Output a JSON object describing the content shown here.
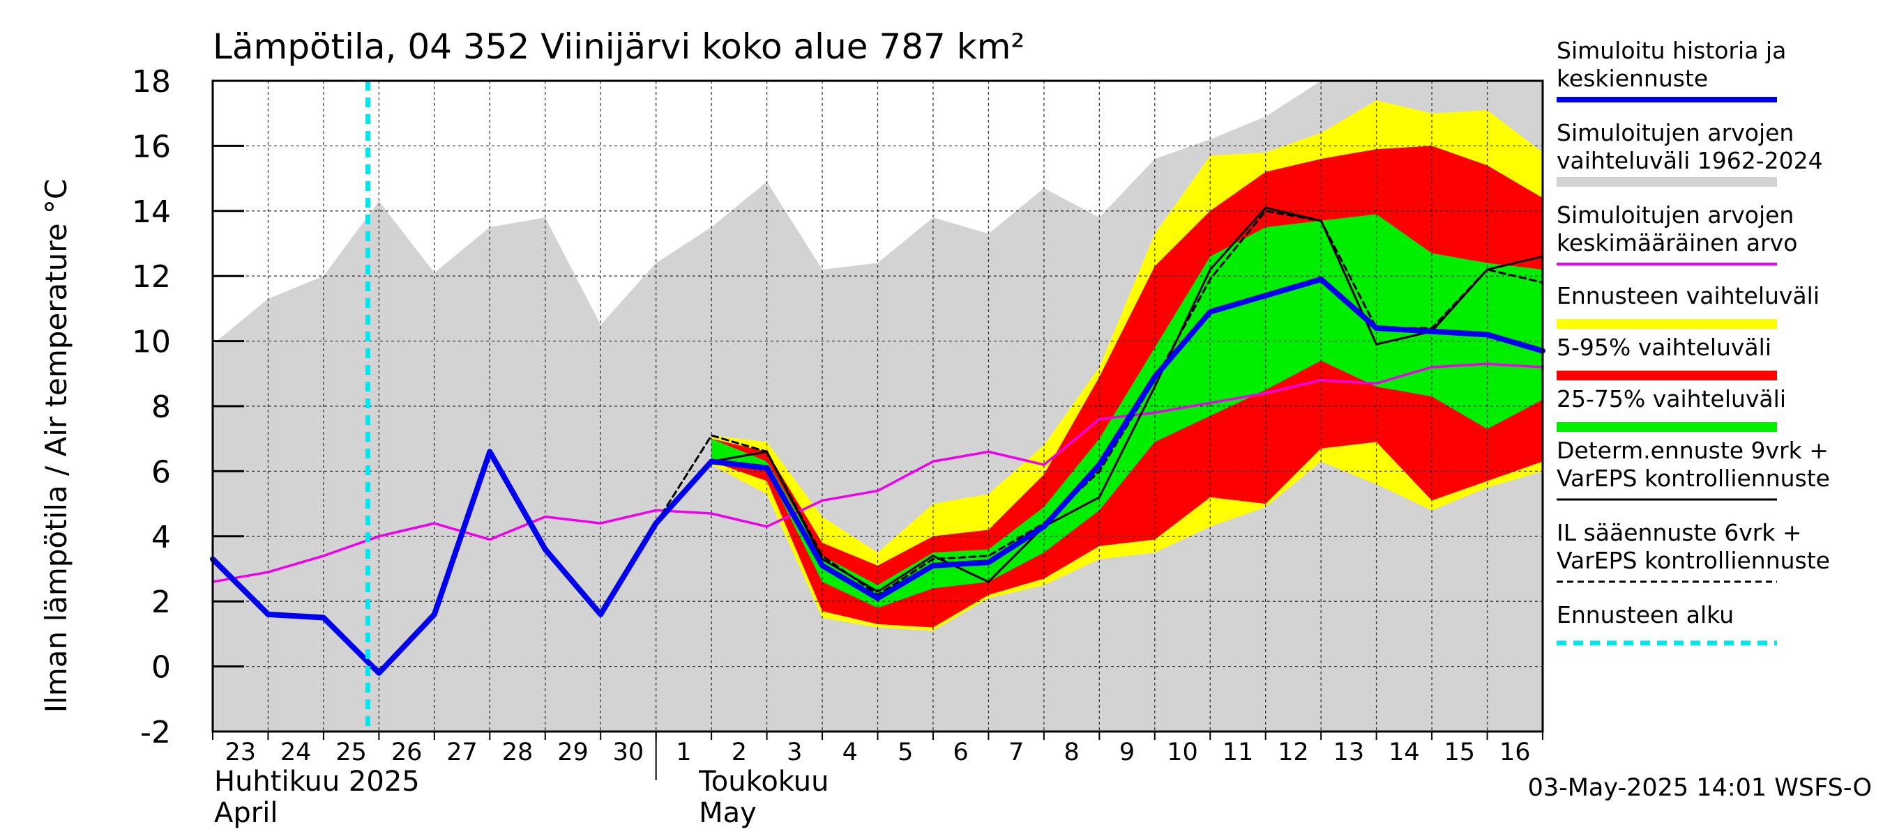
{
  "chart_data": {
    "type": "line",
    "title": "Lämpötila, 04 352 Viinijärvi koko alue 787 km²",
    "ylabel": "Ilman lämpötila / Air temperature   °C",
    "ylim": [
      -2,
      18
    ],
    "yticks": [
      -2,
      0,
      2,
      4,
      6,
      8,
      10,
      12,
      14,
      16,
      18
    ],
    "x_tick_labels": [
      "23",
      "24",
      "25",
      "26",
      "27",
      "28",
      "29",
      "30",
      "1",
      "2",
      "3",
      "4",
      "5",
      "6",
      "7",
      "8",
      "9",
      "10",
      "11",
      "12",
      "13",
      "14",
      "15",
      "16"
    ],
    "month_labels": [
      {
        "fi": "Huhtikuu  2025",
        "en": "April"
      },
      {
        "fi": "Toukokuu",
        "en": "May"
      }
    ],
    "forecast_start": 2.8,
    "timestamp": "03-May-2025 14:01 WSFS-O",
    "colors": {
      "history": "#0000ee",
      "range_hist": "#d3d3d3",
      "mean_hist": "#ee00ee",
      "forecast_range": "#ffff00",
      "range_5_95": "#ff0000",
      "range_25_75": "#00ee00",
      "determ": "#000000",
      "forecast_start": "#00e5ee"
    },
    "legend": [
      {
        "key": "history",
        "label": "Simuloitu historia ja keskiennuste",
        "line1": "Simuloitu historia ja",
        "line2": "keskiennuste"
      },
      {
        "key": "range_hist",
        "label": "Simuloitujen arvojen vaihteluväli 1962-2024",
        "line1": "Simuloitujen arvojen",
        "line2": "vaihteluväli 1962-2024"
      },
      {
        "key": "mean_hist",
        "label": "Simuloitujen arvojen keskimääräinen arvo",
        "line1": "Simuloitujen arvojen",
        "line2": "keskimääräinen arvo"
      },
      {
        "key": "forecast_range",
        "label": "Ennusteen vaihteluväli",
        "line1": "Ennusteen vaihteluväli",
        "line2": ""
      },
      {
        "key": "range_5_95",
        "label": "5-95% vaihteluväli",
        "line1": "5-95% vaihteluväli",
        "line2": ""
      },
      {
        "key": "range_25_75",
        "label": "25-75% vaihteluväli",
        "line1": "25-75% vaihteluväli",
        "line2": ""
      },
      {
        "key": "determ",
        "label": "Determ.ennuste 9vrk + VarEPS kontrolliennuste",
        "line1": "Determ.ennuste 9vrk +",
        "line2": "VarEPS kontrolliennuste"
      },
      {
        "key": "il",
        "label": "IL sääennuste 6vrk + VarEPS kontrolliennuste",
        "line1": "IL sääennuste 6vrk  +",
        "line2": "  VarEPS kontrolliennuste"
      },
      {
        "key": "forecast_start",
        "label": "Ennusteen alku",
        "line1": "Ennusteen alku",
        "line2": ""
      }
    ],
    "series": {
      "range_hist": {
        "x": [
          0,
          1,
          2,
          3,
          4,
          5,
          6,
          7,
          8,
          9,
          10,
          11,
          12,
          13,
          14,
          15,
          16,
          17,
          18,
          19,
          20,
          21,
          22,
          23,
          24
        ],
        "lower": [
          -2,
          -2,
          -2,
          -2,
          -2,
          -2,
          -2,
          -2,
          -2,
          -2,
          -2,
          -2,
          -2,
          -2,
          -2,
          -2,
          -2,
          -2,
          -2,
          -2,
          -2,
          -2,
          -2,
          -2,
          -2
        ],
        "upper": [
          9.9,
          11.3,
          12.0,
          14.3,
          12.1,
          13.5,
          13.8,
          10.5,
          12.4,
          13.5,
          14.9,
          12.2,
          12.4,
          13.8,
          13.3,
          14.7,
          13.8,
          15.6,
          16.2,
          16.9,
          18.0,
          18.0,
          18.0,
          18.0,
          18.0
        ]
      },
      "mean_hist": {
        "x": [
          0,
          1,
          2,
          3,
          4,
          5,
          6,
          7,
          8,
          9,
          10,
          11,
          12,
          13,
          14,
          15,
          16,
          17,
          18,
          19,
          20,
          21,
          22,
          23,
          24
        ],
        "y": [
          2.6,
          2.9,
          3.4,
          4.0,
          4.4,
          3.9,
          4.6,
          4.4,
          4.8,
          4.7,
          4.3,
          5.1,
          5.4,
          6.3,
          6.6,
          6.2,
          7.6,
          7.8,
          8.1,
          8.4,
          8.8,
          8.7,
          9.2,
          9.3,
          9.2
        ]
      },
      "history": {
        "x": [
          0,
          1,
          2,
          3,
          4,
          5,
          6,
          7,
          8,
          9,
          10,
          11,
          12,
          13,
          14,
          15,
          16,
          17,
          18,
          19,
          20,
          21,
          22,
          23,
          24
        ],
        "y": [
          3.3,
          1.6,
          1.5,
          -0.2,
          1.6,
          6.6,
          3.6,
          1.6,
          4.4,
          6.3,
          6.1,
          3.1,
          2.1,
          3.1,
          3.2,
          4.3,
          6.2,
          8.9,
          10.9,
          11.4,
          11.9,
          10.4,
          10.3,
          10.2,
          9.7
        ]
      },
      "forecast_range": {
        "x": [
          9,
          10,
          11,
          12,
          13,
          14,
          15,
          16,
          17,
          18,
          19,
          20,
          21,
          22,
          23,
          24
        ],
        "lower": [
          6.2,
          5.3,
          1.5,
          1.2,
          1.1,
          2.1,
          2.5,
          3.3,
          3.5,
          4.3,
          4.9,
          6.3,
          5.6,
          4.8,
          5.5,
          6.0
        ],
        "upper": [
          7.1,
          6.9,
          4.6,
          3.5,
          5.0,
          5.3,
          6.8,
          9.2,
          13.3,
          15.7,
          15.8,
          16.4,
          17.4,
          17.0,
          17.1,
          15.8
        ]
      },
      "range_5_95": {
        "x": [
          9,
          10,
          11,
          12,
          13,
          14,
          15,
          16,
          17,
          18,
          19,
          20,
          21,
          22,
          23,
          24
        ],
        "lower": [
          6.3,
          5.7,
          1.7,
          1.3,
          1.2,
          2.2,
          2.7,
          3.7,
          3.9,
          5.2,
          5.0,
          6.7,
          6.9,
          5.1,
          5.7,
          6.3
        ],
        "upper": [
          7.0,
          6.6,
          3.8,
          3.1,
          4.0,
          4.2,
          5.9,
          8.9,
          12.3,
          14.0,
          15.2,
          15.6,
          15.9,
          16.0,
          15.4,
          14.4
        ]
      },
      "range_25_75": {
        "x": [
          9,
          10,
          11,
          12,
          13,
          14,
          15,
          16,
          17,
          18,
          19,
          20,
          21,
          22,
          23,
          24
        ],
        "lower": [
          6.4,
          6.0,
          2.6,
          1.8,
          2.4,
          2.6,
          3.5,
          4.8,
          6.9,
          7.7,
          8.5,
          9.4,
          8.6,
          8.3,
          7.3,
          8.2
        ],
        "upper": [
          7.0,
          6.3,
          3.4,
          2.5,
          3.5,
          3.6,
          4.9,
          7.0,
          9.8,
          12.6,
          13.5,
          13.7,
          13.9,
          12.7,
          12.4,
          12.2
        ]
      },
      "determ": {
        "x": [
          8,
          9,
          10,
          11,
          12,
          13,
          14,
          15,
          16,
          17,
          18,
          19,
          20,
          21,
          22,
          23,
          24
        ],
        "y": [
          4.4,
          6.3,
          6.6,
          3.3,
          2.3,
          3.4,
          2.6,
          4.3,
          5.2,
          8.6,
          12.2,
          14.1,
          13.7,
          9.9,
          10.3,
          12.2,
          12.6
        ]
      },
      "il": {
        "x": [
          8,
          9,
          10,
          11,
          12,
          13,
          14,
          15,
          16,
          17,
          18,
          19,
          20,
          21,
          22,
          23,
          24
        ],
        "y": [
          4.4,
          7.1,
          6.6,
          3.4,
          2.2,
          3.3,
          3.4,
          4.4,
          6.0,
          8.8,
          11.9,
          14.0,
          13.7,
          10.4,
          10.4,
          12.2,
          11.8
        ]
      }
    }
  }
}
